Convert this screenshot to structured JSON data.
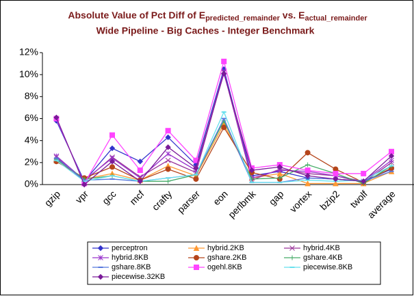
{
  "chart_data": {
    "type": "line",
    "title": [
      "Absolute Value of Pct Diff of E",
      "predicted_remainder",
      " vs. E",
      "actual_remainder"
    ],
    "subtitle": "Wide Pipeline - Big Caches - Integer Benchmark",
    "categories": [
      "gzip",
      "vpr",
      "gcc",
      "mcf",
      "crafty",
      "parser",
      "eon",
      "perlbmk",
      "gap",
      "vortex",
      "bzip2",
      "twolf",
      "average"
    ],
    "ylim": [
      0,
      12
    ],
    "yticks": [
      {
        "value": 0,
        "label": "0%"
      },
      {
        "value": 2,
        "label": "2%"
      },
      {
        "value": 4,
        "label": "4%"
      },
      {
        "value": 6,
        "label": "6%"
      },
      {
        "value": 8,
        "label": "8%"
      },
      {
        "value": 10,
        "label": "10%"
      },
      {
        "value": 12,
        "label": "12%"
      }
    ],
    "series": [
      {
        "name": "perceptron",
        "color": "#3333cc",
        "marker": "diamond",
        "values": [
          5.8,
          0.3,
          3.3,
          2.1,
          4.3,
          1.8,
          10.5,
          0.8,
          1.2,
          0.6,
          0.5,
          0.3,
          1.4
        ]
      },
      {
        "name": "hybrid.2KB",
        "color": "#ff9933",
        "marker": "triangle",
        "values": [
          2.2,
          0.5,
          1.0,
          0.4,
          1.7,
          0.8,
          5.5,
          0.6,
          1.0,
          0.1,
          0.1,
          0.1,
          1.2
        ]
      },
      {
        "name": "hybrid.4KB",
        "color": "#993399",
        "marker": "x",
        "values": [
          2.5,
          0.3,
          2.5,
          0.7,
          2.2,
          1.1,
          10.2,
          0.4,
          1.4,
          1.0,
          0.8,
          0.2,
          2.0
        ]
      },
      {
        "name": "hybrid.8KB",
        "color": "#9933cc",
        "marker": "star",
        "values": [
          2.6,
          0.4,
          2.4,
          0.6,
          2.8,
          1.3,
          10.3,
          0.6,
          1.3,
          1.2,
          0.8,
          0.3,
          2.2
        ]
      },
      {
        "name": "gshare.2KB",
        "color": "#b5451b",
        "marker": "circle",
        "values": [
          2.1,
          0.6,
          1.6,
          0.4,
          1.4,
          0.5,
          5.2,
          1.1,
          0.5,
          2.9,
          1.4,
          0.2,
          1.5
        ]
      },
      {
        "name": "gshare.4KB",
        "color": "#44aa66",
        "marker": "plus",
        "values": [
          2.3,
          0.5,
          0.8,
          0.3,
          0.3,
          0.9,
          5.8,
          0.5,
          0.6,
          1.8,
          1.0,
          0.1,
          1.7
        ]
      },
      {
        "name": "gshare.8KB",
        "color": "#5577dd",
        "marker": "dash",
        "values": [
          2.4,
          0.4,
          0.5,
          0.3,
          0.6,
          0.9,
          6.0,
          0.2,
          0.2,
          0.6,
          0.5,
          0.3,
          1.2
        ]
      },
      {
        "name": "ogehl.8KB",
        "color": "#ff44ff",
        "marker": "square",
        "values": [
          6.0,
          0.1,
          4.5,
          1.3,
          4.9,
          2.2,
          11.2,
          1.5,
          1.8,
          1.3,
          1.0,
          1.0,
          3.0
        ]
      },
      {
        "name": "piecewise.8KB",
        "color": "#66e0ee",
        "marker": "dash",
        "values": [
          2.2,
          0.3,
          0.8,
          0.3,
          0.6,
          0.9,
          6.6,
          0.2,
          0.2,
          0.4,
          0.3,
          0.4,
          1.7
        ]
      },
      {
        "name": "piecewise.32KB",
        "color": "#7a1a99",
        "marker": "diamond",
        "values": [
          6.1,
          0.0,
          2.1,
          0.3,
          3.4,
          1.5,
          10.1,
          1.3,
          1.6,
          0.8,
          0.5,
          0.3,
          2.6
        ]
      }
    ]
  }
}
